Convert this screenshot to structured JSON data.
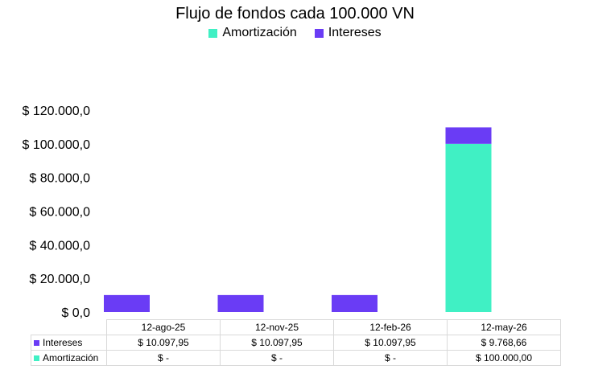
{
  "chart_data": {
    "type": "bar",
    "stacked": true,
    "title": "Flujo de fondos cada 100.000 VN",
    "categories": [
      "12-ago-25",
      "12-nov-25",
      "12-feb-26",
      "12-may-26"
    ],
    "series": [
      {
        "name": "Amortización",
        "color": "#40f0c4",
        "values": [
          0,
          0,
          0,
          100000
        ],
        "labels": [
          "$ -",
          "$ -",
          "$ -",
          "$ 100.000,00"
        ]
      },
      {
        "name": "Intereses",
        "color": "#6a3cf5",
        "values": [
          10097.95,
          10097.95,
          10097.95,
          9768.66
        ],
        "labels": [
          "$ 10.097,95",
          "$ 10.097,95",
          "$ 10.097,95",
          "$ 9.768,66"
        ]
      }
    ],
    "ylim": [
      0,
      120000
    ],
    "yticks": [
      0,
      20000,
      40000,
      60000,
      80000,
      100000,
      120000
    ],
    "ytick_labels": [
      "$ 0,0",
      "$ 20.000,0",
      "$ 40.000,0",
      "$ 60.000,0",
      "$ 80.000,0",
      "$ 100.000,0",
      "$ 120.000,0"
    ],
    "legend_position": "top",
    "grid": false,
    "data_table": true
  }
}
